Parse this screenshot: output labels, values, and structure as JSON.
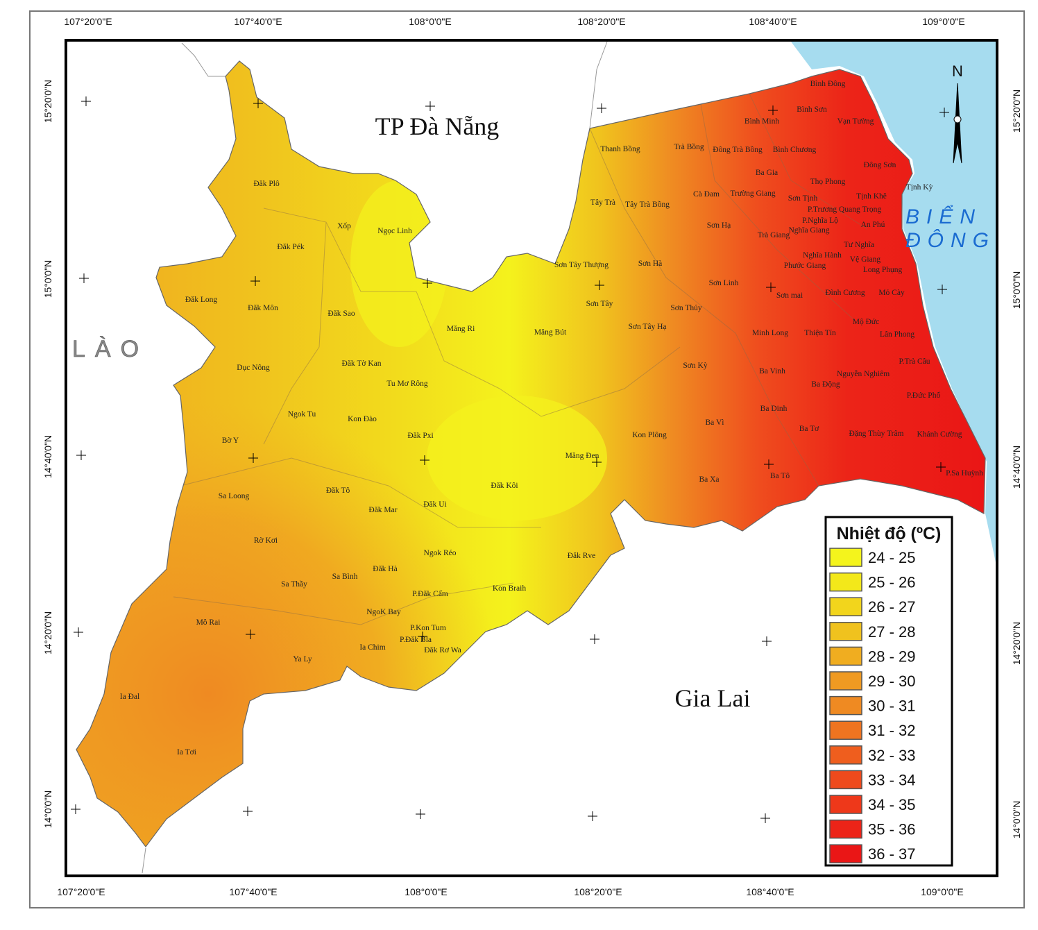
{
  "top_axis_labels": [
    "107°20'0\"E",
    "107°40'0\"E",
    "108°0'0\"E",
    "108°20'0\"E",
    "108°40'0\"E",
    "109°0'0\"E"
  ],
  "bottom_axis_labels": [
    "107°20'0\"E",
    "107°40'0\"E",
    "108°0'0\"E",
    "108°20'0\"E",
    "108°40'0\"E",
    "109°0'0\"E"
  ],
  "left_axis_labels": [
    "15°20'0\"N",
    "15°0'0\"N",
    "14°40'0\"N",
    "14°20'0\"N",
    "14°0'0\"N"
  ],
  "right_axis_labels": [
    "15°20'0\"N",
    "15°0'0\"N",
    "14°40'0\"N",
    "14°20'0\"N",
    "14°0'0\"N"
  ],
  "regions": {
    "north": "TP Đà Nẵng",
    "south": "Gia Lai",
    "west": "LÀO",
    "sea_line1": "BIỂN",
    "sea_line2": "ĐÔNG"
  },
  "north_arrow": "N",
  "communes": [
    "Bình Đông",
    "Bình Sơn",
    "Bình Minh",
    "Vạn Tường",
    "Thanh Bồng",
    "Trà Bồng",
    "Đông Trà Bồng",
    "Bình Chương",
    "Đông Sơn",
    "Ba Gia",
    "Thọ Phong",
    "Tịnh Kỳ",
    "Cà Đam",
    "Trường Giang",
    "Sơn Tịnh",
    "Tịnh Khê",
    "Tây Trà",
    "Tây Trà Bồng",
    "P.Trương Quang Trọng",
    "P.Nghĩa Lộ",
    "Sơn Hạ",
    "Nghĩa Giang",
    "An Phú",
    "Trà Giang",
    "Ngọc Linh",
    "Xốp",
    "Đăk Plô",
    "Đăk Pék",
    "Tư Nghĩa",
    "Nghĩa Hành",
    "Vệ Giang",
    "Sơn Tây Thượng",
    "Sơn Hà",
    "Phước Giang",
    "Long Phụng",
    "Sơn Linh",
    "Sơn mai",
    "Đình Cương",
    "Mỏ Cày",
    "Sơn Tây",
    "Sơn Thủy",
    "Đăk Long",
    "Đăk Môn",
    "Đăk Sao",
    "Măng Ri",
    "Măng Bút",
    "Sơn Tây Hạ",
    "Mộ Đức",
    "Minh Long",
    "Thiện Tín",
    "Lân Phong",
    "Đăk Tờ Kan",
    "Sơn Kỳ",
    "P.Trà Câu",
    "Dục Nông",
    "Ba Vinh",
    "Nguyễn Nghiêm",
    "Tu Mơ Rông",
    "Ba Động",
    "P.Đức Phổ",
    "Ngok Tu",
    "Ba Dinh",
    "Kon Đào",
    "Ba Vì",
    "Ba Tơ",
    "Đặng Thùy Trâm",
    "Khánh Cường",
    "Đăk Pxi",
    "Kon Plông",
    "Bờ Y",
    "Măng Đen",
    "Ba Tô",
    "Ba Xa",
    "P.Sa Huỳnh",
    "Đăk Kôi",
    "Đăk Tô",
    "Sa Loong",
    "Đăk Ui",
    "Đăk Mar",
    "Rờ Kơi",
    "Ngok Réo",
    "Đăk Rve",
    "Đăk Hà",
    "Sa Bình",
    "Sa Thầy",
    "Kon Braih",
    "P.Đăk Cấm",
    "NgoK Bay",
    "Mô Rai",
    "P.Kon Tum",
    "P.Đăk Bla",
    "Đăk Rơ Wa",
    "Ia Chim",
    "Ya Ly",
    "Ia Đal",
    "Ia Tơi"
  ],
  "legend": {
    "title": "Nhiệt độ (ºC)",
    "items": [
      {
        "label": "24 - 25",
        "color": "#f4f41c"
      },
      {
        "label": "25 - 26",
        "color": "#f3e81a"
      },
      {
        "label": "26 - 27",
        "color": "#f2d51c"
      },
      {
        "label": "27 - 28",
        "color": "#f0c21e"
      },
      {
        "label": "28 - 29",
        "color": "#f0ad20"
      },
      {
        "label": "29 - 30",
        "color": "#ef9a22"
      },
      {
        "label": "30 - 31",
        "color": "#ef8a22"
      },
      {
        "label": "31 - 32",
        "color": "#ef7420"
      },
      {
        "label": "32 - 33",
        "color": "#ef5e1e"
      },
      {
        "label": "33 - 34",
        "color": "#ee4a1c"
      },
      {
        "label": "34 - 35",
        "color": "#ee381a"
      },
      {
        "label": "35 - 36",
        "color": "#ec2418"
      },
      {
        "label": "36 - 37",
        "color": "#ea1616"
      }
    ]
  }
}
